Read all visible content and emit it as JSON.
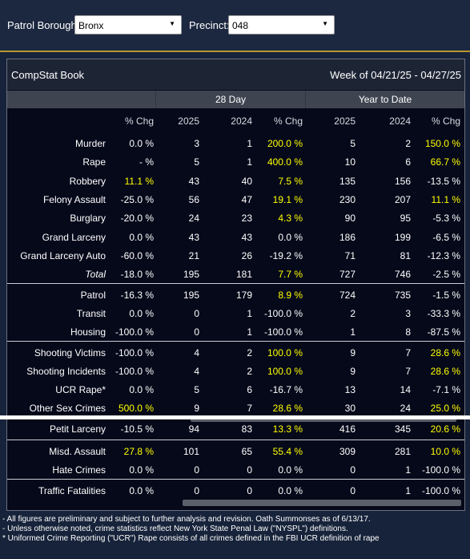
{
  "filters": {
    "borough_label": "Patrol Borough:",
    "borough_value": "Bronx",
    "precinct_label": "Precinct:",
    "precinct_value": "048"
  },
  "book": {
    "title": "CompStat Book",
    "week": "Week of 04/21/25 - 04/27/25"
  },
  "groups": [
    "28 Day",
    "Year to Date"
  ],
  "headers": [
    "% Chg",
    "2025",
    "2024",
    "% Chg",
    "2025",
    "2024",
    "% Chg"
  ],
  "rows": [
    {
      "label": "Murder",
      "v": [
        "0.0 %",
        "3",
        "1",
        "200.0 %",
        "5",
        "2",
        "150.0 %"
      ],
      "hl": [
        false,
        false,
        false,
        true,
        false,
        false,
        true
      ]
    },
    {
      "label": "Rape",
      "v": [
        "- %",
        "5",
        "1",
        "400.0 %",
        "10",
        "6",
        "66.7 %"
      ],
      "hl": [
        false,
        false,
        false,
        true,
        false,
        false,
        true
      ]
    },
    {
      "label": "Robbery",
      "v": [
        "11.1 %",
        "43",
        "40",
        "7.5 %",
        "135",
        "156",
        "-13.5 %"
      ],
      "hl": [
        true,
        false,
        false,
        true,
        false,
        false,
        false
      ]
    },
    {
      "label": "Felony Assault",
      "v": [
        "-25.0 %",
        "56",
        "47",
        "19.1 %",
        "230",
        "207",
        "11.1 %"
      ],
      "hl": [
        false,
        false,
        false,
        true,
        false,
        false,
        true
      ]
    },
    {
      "label": "Burglary",
      "v": [
        "-20.0 %",
        "24",
        "23",
        "4.3 %",
        "90",
        "95",
        "-5.3 %"
      ],
      "hl": [
        false,
        false,
        false,
        true,
        false,
        false,
        false
      ]
    },
    {
      "label": "Grand Larceny",
      "v": [
        "0.0 %",
        "43",
        "43",
        "0.0 %",
        "186",
        "199",
        "-6.5 %"
      ],
      "hl": [
        false,
        false,
        false,
        false,
        false,
        false,
        false
      ]
    },
    {
      "label": "Grand Larceny Auto",
      "v": [
        "-60.0 %",
        "21",
        "26",
        "-19.2 %",
        "71",
        "81",
        "-12.3 %"
      ],
      "hl": [
        false,
        false,
        false,
        false,
        false,
        false,
        false
      ]
    },
    {
      "label": "Total",
      "v": [
        "-18.0 %",
        "195",
        "181",
        "7.7 %",
        "727",
        "746",
        "-2.5 %"
      ],
      "hl": [
        false,
        false,
        false,
        true,
        false,
        false,
        false
      ],
      "italic": true
    },
    {
      "label": "Patrol",
      "v": [
        "-16.3 %",
        "195",
        "179",
        "8.9 %",
        "724",
        "735",
        "-1.5 %"
      ],
      "hl": [
        false,
        false,
        false,
        true,
        false,
        false,
        false
      ]
    },
    {
      "label": "Transit",
      "v": [
        "0.0 %",
        "0",
        "1",
        "-100.0 %",
        "2",
        "3",
        "-33.3 %"
      ],
      "hl": [
        false,
        false,
        false,
        false,
        false,
        false,
        false
      ]
    },
    {
      "label": "Housing",
      "v": [
        "-100.0 %",
        "0",
        "1",
        "-100.0 %",
        "1",
        "8",
        "-87.5 %"
      ],
      "hl": [
        false,
        false,
        false,
        false,
        false,
        false,
        false
      ]
    },
    {
      "label": "Shooting Victims",
      "v": [
        "-100.0 %",
        "4",
        "2",
        "100.0 %",
        "9",
        "7",
        "28.6 %"
      ],
      "hl": [
        false,
        false,
        false,
        true,
        false,
        false,
        true
      ]
    },
    {
      "label": "Shooting Incidents",
      "v": [
        "-100.0 %",
        "4",
        "2",
        "100.0 %",
        "9",
        "7",
        "28.6 %"
      ],
      "hl": [
        false,
        false,
        false,
        true,
        false,
        false,
        true
      ]
    },
    {
      "label": "UCR Rape*",
      "v": [
        "0.0 %",
        "5",
        "6",
        "-16.7 %",
        "13",
        "14",
        "-7.1 %"
      ],
      "hl": [
        false,
        false,
        false,
        false,
        false,
        false,
        false
      ]
    },
    {
      "label": "Other Sex Crimes",
      "v": [
        "500.0 %",
        "9",
        "7",
        "28.6 %",
        "30",
        "24",
        "25.0 %"
      ],
      "hl": [
        true,
        false,
        false,
        true,
        false,
        false,
        true
      ]
    },
    {
      "label": "Petit Larceny",
      "v": [
        "-10.5 %",
        "94",
        "83",
        "13.3 %",
        "416",
        "345",
        "20.6 %"
      ],
      "hl": [
        false,
        false,
        false,
        true,
        false,
        false,
        true
      ]
    },
    {
      "label": "Misd. Assault",
      "v": [
        "27.8 %",
        "101",
        "65",
        "55.4 %",
        "309",
        "281",
        "10.0 %"
      ],
      "hl": [
        true,
        false,
        false,
        true,
        false,
        false,
        true
      ]
    },
    {
      "label": "Hate Crimes",
      "v": [
        "0.0 %",
        "0",
        "0",
        "0.0 %",
        "0",
        "1",
        "-100.0 %"
      ],
      "hl": [
        false,
        false,
        false,
        false,
        false,
        false,
        false
      ]
    },
    {
      "label": "Traffic Fatalities",
      "v": [
        "0.0 %",
        "0",
        "0",
        "0.0 %",
        "0",
        "1",
        "-100.0 %"
      ],
      "hl": [
        false,
        false,
        false,
        false,
        false,
        false,
        false
      ]
    }
  ],
  "footnotes": [
    "- All figures are preliminary and subject to further analysis and revision. Oath Summonses as of 6/13/17.",
    "- Unless otherwise noted, crime statistics reflect New York State Penal Law (\"NYSPL\") definitions.",
    "* Uniformed Crime Reporting (\"UCR\") Rape consists of all crimes defined in the FBI UCR definition of rape"
  ],
  "colors": {
    "highlight": "#ffff00",
    "accent": "#b8962e",
    "panel": "#06091a",
    "background": "#17233a"
  }
}
